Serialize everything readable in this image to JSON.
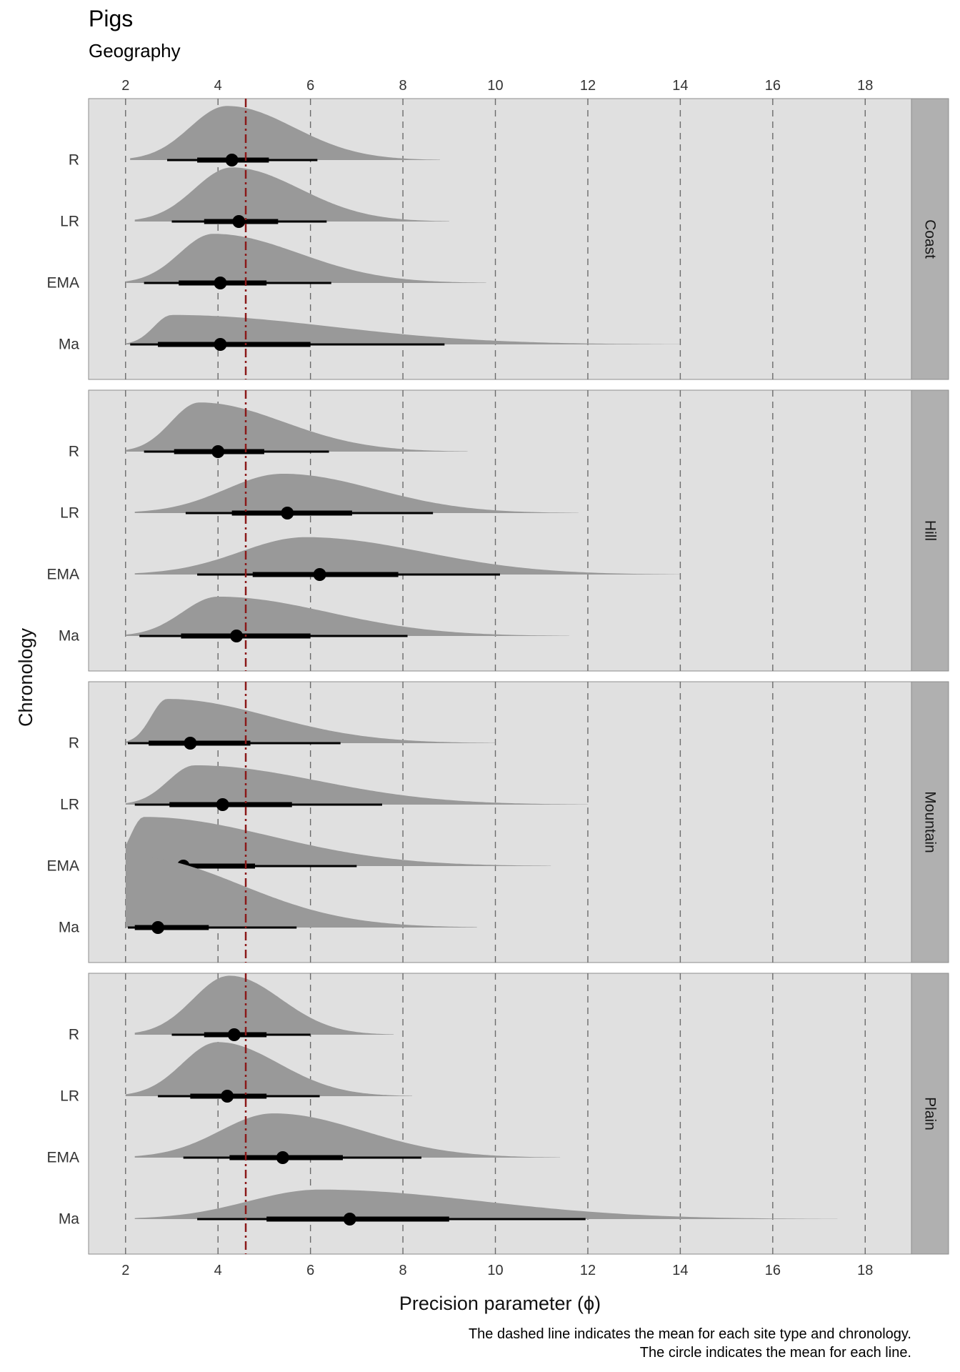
{
  "title": "Pigs",
  "subtitle": "Geography",
  "caption_line1": "The dashed line indicates the mean for each site type and chronology.",
  "caption_line2": "The circle indicates the mean for each line.",
  "chart_data": {
    "type": "density-interval",
    "xlabel": "Precision parameter (ϕ)",
    "ylabel": "Chronology",
    "xlim": [
      1.2,
      19
    ],
    "x_ticks": [
      2,
      4,
      6,
      8,
      10,
      12,
      14,
      16,
      18
    ],
    "overall_mean": 4.6,
    "grid": "dashed vertical",
    "colors": {
      "panel_bg": "#e0e0e0",
      "strip_bg": "#b0b0b0",
      "density": "#999999",
      "mean_line": "#8b1a1a",
      "interval": "#000000"
    },
    "panels": [
      {
        "facet": "Coast",
        "rows": [
          {
            "label": "R",
            "mean": 4.3,
            "inner": [
              3.55,
              5.1
            ],
            "outer": [
              2.9,
              6.15
            ],
            "tail": [
              2.1,
              8.8
            ],
            "peak": 4.2,
            "height": 0.55
          },
          {
            "label": "LR",
            "mean": 4.45,
            "inner": [
              3.7,
              5.3
            ],
            "outer": [
              3.0,
              6.35
            ],
            "tail": [
              2.2,
              9.0
            ],
            "peak": 4.3,
            "height": 0.55
          },
          {
            "label": "EMA",
            "mean": 4.05,
            "inner": [
              3.15,
              5.05
            ],
            "outer": [
              2.4,
              6.45
            ],
            "tail": [
              2.0,
              9.8
            ],
            "peak": 3.9,
            "height": 0.5
          },
          {
            "label": "Ma",
            "mean": 4.05,
            "inner": [
              2.7,
              6.0
            ],
            "outer": [
              2.1,
              8.9
            ],
            "tail": [
              2.0,
              14.0
            ],
            "peak": 3.0,
            "height": 0.3
          }
        ]
      },
      {
        "facet": "Hill",
        "rows": [
          {
            "label": "R",
            "mean": 4.0,
            "inner": [
              3.05,
              5.0
            ],
            "outer": [
              2.4,
              6.4
            ],
            "tail": [
              2.0,
              9.4
            ],
            "peak": 3.6,
            "height": 0.5
          },
          {
            "label": "LR",
            "mean": 5.5,
            "inner": [
              4.3,
              6.9
            ],
            "outer": [
              3.3,
              8.65
            ],
            "tail": [
              2.2,
              11.8
            ],
            "peak": 5.4,
            "height": 0.4
          },
          {
            "label": "EMA",
            "mean": 6.2,
            "inner": [
              4.75,
              7.9
            ],
            "outer": [
              3.55,
              10.1
            ],
            "tail": [
              2.2,
              14.0
            ],
            "peak": 5.9,
            "height": 0.38
          },
          {
            "label": "Ma",
            "mean": 4.4,
            "inner": [
              3.2,
              6.0
            ],
            "outer": [
              2.3,
              8.1
            ],
            "tail": [
              2.0,
              11.6
            ],
            "peak": 4.0,
            "height": 0.4
          }
        ]
      },
      {
        "facet": "Mountain",
        "rows": [
          {
            "label": "R",
            "mean": 3.4,
            "inner": [
              2.5,
              4.7
            ],
            "outer": [
              2.05,
              6.65
            ],
            "tail": [
              2.0,
              10.0
            ],
            "peak": 2.9,
            "height": 0.45
          },
          {
            "label": "LR",
            "mean": 4.1,
            "inner": [
              2.95,
              5.6
            ],
            "outer": [
              2.2,
              7.55
            ],
            "tail": [
              2.0,
              12.0
            ],
            "peak": 3.5,
            "height": 0.4
          },
          {
            "label": "EMA",
            "mean": 3.25,
            "inner": [
              2.4,
              4.8
            ],
            "outer": [
              2.05,
              7.0
            ],
            "tail": [
              2.0,
              11.2
            ],
            "peak": 2.4,
            "height": 0.5
          },
          {
            "label": "Ma",
            "mean": 2.7,
            "inner": [
              2.2,
              3.8
            ],
            "outer": [
              2.05,
              5.7
            ],
            "tail": [
              2.0,
              9.6
            ],
            "peak": 2.15,
            "height": 0.72
          }
        ]
      },
      {
        "facet": "Plain",
        "rows": [
          {
            "label": "R",
            "mean": 4.35,
            "inner": [
              3.7,
              5.05
            ],
            "outer": [
              3.0,
              6.0
            ],
            "tail": [
              2.2,
              7.8
            ],
            "peak": 4.25,
            "height": 0.6
          },
          {
            "label": "LR",
            "mean": 4.2,
            "inner": [
              3.4,
              5.05
            ],
            "outer": [
              2.7,
              6.2
            ],
            "tail": [
              2.0,
              8.2
            ],
            "peak": 4.0,
            "height": 0.55
          },
          {
            "label": "EMA",
            "mean": 5.4,
            "inner": [
              4.25,
              6.7
            ],
            "outer": [
              3.25,
              8.4
            ],
            "tail": [
              2.2,
              11.4
            ],
            "peak": 5.2,
            "height": 0.45
          },
          {
            "label": "Ma",
            "mean": 6.85,
            "inner": [
              5.05,
              9.0
            ],
            "outer": [
              3.55,
              11.95
            ],
            "tail": [
              2.2,
              17.4
            ],
            "peak": 6.2,
            "height": 0.3
          }
        ]
      }
    ]
  }
}
